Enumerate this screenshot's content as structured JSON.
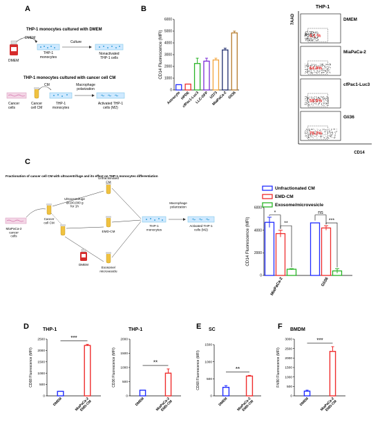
{
  "colors": {
    "blue": "#1f2bff",
    "red": "#ef2b2b",
    "green": "#27b324",
    "purple": "#7a2bd6",
    "orange": "#f2a33a",
    "navy": "#1d2b6b",
    "brown": "#b57a2a",
    "flask": "#7ec7e6",
    "dish_fill": "#cfe9ff",
    "cell": "#3aa0d8",
    "pink_cells": "#e9a7cc",
    "bottle_red": "#d62b2b",
    "tube_yellow": "#f0c240"
  },
  "panelA": {
    "letter": "A",
    "top_title": "THP-1 monocytes cultured with DMEM",
    "dmem_arrow_label": "DMEM",
    "bottle_label": "DMEM",
    "thp1_label": "THP-1\nmonocytes",
    "culture_label": "Culture",
    "nonactivated_label": "Nonactivated\nTHP-1 cells",
    "bottom_title": "THP-1 monocytes cultured with cancer cell CM",
    "cm_label": "CM",
    "cancer_cells_label": "Cancer\ncells",
    "cancer_cm_label": "Cancer\ncell CM",
    "thp1_label2": "THP-1\nmonocytes",
    "macro_label": "Macrophage\npolarization",
    "activated_label": "Activated THP-1\ncells (M2)"
  },
  "panelC_schematic": {
    "letter": "C",
    "title": "Fractionation of cancer cell CM with ultracentrifuge and its effect on THP-1 monocytes differentiation",
    "miapaca_label": "MiaPaCa-2\ncancer\ncells",
    "cancer_cm_label": "Cancer\ncell CM",
    "ultra_label": "Ultracentrifuge\n@100,000 g\nfor 1h",
    "unfract_label": "Unfractionated\nCM",
    "emd_label": "EMD-CM",
    "exo_label": "Exosome/\nmicrovesicle",
    "dmem_label": "DMEM",
    "thp1_label": "THP-1\nmonocytes",
    "macro_label": "Macrophage\npolarization",
    "activated_label": "Activated THP-1\ncells (M2)"
  },
  "flow": {
    "title": "THP-1",
    "ylabel": "7AAD",
    "xlabel": "CD14",
    "panels": [
      {
        "label": "DMEM",
        "percent": "4.1 %"
      },
      {
        "label": "MiaPaCa-2",
        "percent": "64.9%"
      },
      {
        "label": "cfPac1-Luc3",
        "percent": "58.5%"
      },
      {
        "label": "Gli36",
        "percent": "78.2%"
      }
    ]
  },
  "chart_data": [
    {
      "id": "B",
      "panel_letter": "B",
      "type": "bar",
      "title": "",
      "ylabel": "CD14 Fluorescence (MFI)",
      "ylim": [
        0,
        6000
      ],
      "yticks": [
        0,
        1000,
        2000,
        3000,
        4000,
        5000,
        6000
      ],
      "categories": [
        "Astrocyte",
        "HPDE",
        "cfPac1-Luc3",
        "LLC-GFP",
        "U373",
        "MiaPaCa-2",
        "Gli36"
      ],
      "values": [
        450,
        500,
        2250,
        2450,
        2550,
        3400,
        4850
      ],
      "errors": [
        0,
        0,
        450,
        250,
        150,
        150,
        150
      ],
      "bar_colors": [
        "#1f2bff",
        "#ef2b2b",
        "#27b324",
        "#7a2bd6",
        "#f2a33a",
        "#1d2b6b",
        "#b57a2a"
      ],
      "grid": false
    },
    {
      "id": "C",
      "type": "bar",
      "title": "",
      "ylabel": "CD14 Fluorescence (MFI)",
      "ylim": [
        0,
        6000
      ],
      "yticks": [
        0,
        2000,
        4000,
        6000
      ],
      "categories": [
        "MiaPaCa-2",
        "Gli36"
      ],
      "series": [
        {
          "name": "Unfractionated CM",
          "color": "#1f2bff",
          "values": [
            4700,
            4650
          ],
          "errors": [
            450,
            0
          ]
        },
        {
          "name": "EMD-CM",
          "color": "#ef2b2b",
          "values": [
            3700,
            4200
          ],
          "errors": [
            300,
            200
          ]
        },
        {
          "name": "Exosome/microvesicle",
          "color": "#27b324",
          "values": [
            550,
            400
          ],
          "errors": [
            50,
            200
          ]
        }
      ],
      "annotations": [
        "*",
        "**",
        "ns",
        "***"
      ],
      "legend": "top",
      "grid": false
    },
    {
      "id": "D1",
      "panel_letter": "D",
      "type": "bar",
      "title": "THP-1",
      "ylabel": "CD68 Fluorescence (MFI)",
      "ylim": [
        0,
        2500
      ],
      "yticks": [
        0,
        500,
        1000,
        1500,
        2000,
        2500
      ],
      "categories": [
        "DMEM",
        "MiaPaCa-2\nEMD-CM"
      ],
      "values": [
        200,
        2220
      ],
      "errors": [
        0,
        50
      ],
      "bar_colors": [
        "#1f2bff",
        "#ef2b2b"
      ],
      "significance": "***",
      "grid": false
    },
    {
      "id": "D2",
      "type": "bar",
      "title": "THP-1",
      "ylabel": "CD36 Fluorescence (MFI)",
      "ylim": [
        0,
        2000
      ],
      "yticks": [
        0,
        500,
        1000,
        1500,
        2000
      ],
      "categories": [
        "DMEM",
        "MiaPaCa-2\nEMD-CM"
      ],
      "values": [
        200,
        800
      ],
      "errors": [
        0,
        150
      ],
      "bar_colors": [
        "#1f2bff",
        "#ef2b2b"
      ],
      "significance": "**",
      "grid": false
    },
    {
      "id": "E",
      "panel_letter": "E",
      "type": "bar",
      "title": "SC",
      "ylabel": "CD68 Fluorescence (MFI)",
      "ylim": [
        0,
        1500
      ],
      "yticks": [
        0,
        500,
        1000,
        1500
      ],
      "categories": [
        "DMEM",
        "MiaPaCa-2\nEMD-CM"
      ],
      "values": [
        250,
        580
      ],
      "errors": [
        50,
        20
      ],
      "bar_colors": [
        "#1f2bff",
        "#ef2b2b"
      ],
      "significance": "**",
      "grid": false
    },
    {
      "id": "F",
      "panel_letter": "F",
      "type": "bar",
      "title": "BMDM",
      "ylabel": "F4/80 Fluorescence (MFI)",
      "ylim": [
        0,
        3000
      ],
      "yticks": [
        0,
        500,
        1000,
        1500,
        2000,
        2500,
        3000
      ],
      "categories": [
        "DMEM",
        "MiaPaCa-2\nEMD-CM"
      ],
      "values": [
        250,
        2350
      ],
      "errors": [
        50,
        250
      ],
      "bar_colors": [
        "#1f2bff",
        "#ef2b2b"
      ],
      "significance": "***",
      "grid": false
    }
  ]
}
